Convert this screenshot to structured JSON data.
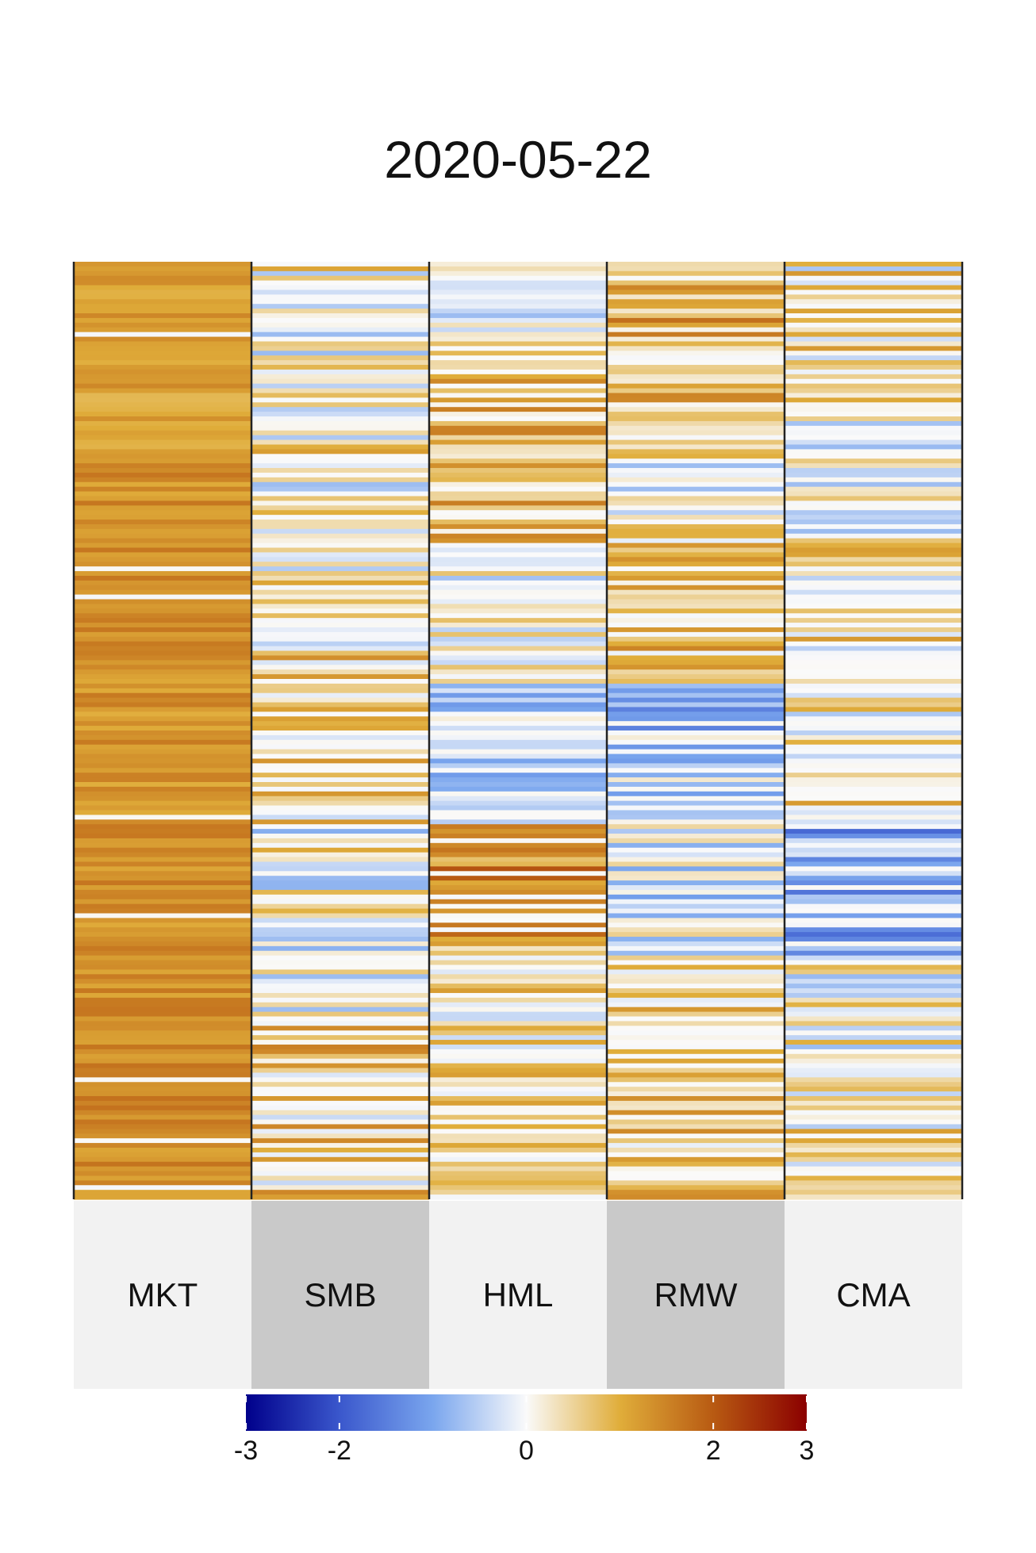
{
  "chart_data": {
    "type": "heatmap",
    "title": "2020-05-22",
    "columns": [
      "MKT",
      "SMB",
      "HML",
      "RMW",
      "CMA"
    ],
    "rows": 200,
    "value_range": [
      -3,
      3
    ],
    "colorbar": {
      "ticks": [
        -3,
        -2,
        0,
        2,
        3
      ],
      "tick_labels": [
        "-3",
        "-2",
        "0",
        "2",
        "3"
      ],
      "stops": [
        {
          "v": -3,
          "color": "#00008b"
        },
        {
          "v": -2,
          "color": "#3a57cc"
        },
        {
          "v": -1,
          "color": "#7aa6ee"
        },
        {
          "v": 0,
          "color": "#fafafa"
        },
        {
          "v": 1,
          "color": "#e0ad3a"
        },
        {
          "v": 2,
          "color": "#b85a12"
        },
        {
          "v": 3,
          "color": "#8b0000"
        }
      ]
    },
    "column_profiles": [
      {
        "name": "MKT",
        "segments": [
          [
            0,
            40,
            1.15
          ],
          [
            40,
            80,
            1.35
          ],
          [
            80,
            120,
            1.3
          ],
          [
            120,
            160,
            1.35
          ],
          [
            160,
            200,
            1.4
          ]
        ],
        "noise": 0.2,
        "white_rate": 0.02
      },
      {
        "name": "SMB",
        "segments": [
          [
            0,
            40,
            0.2
          ],
          [
            40,
            80,
            0.3
          ],
          [
            80,
            120,
            0.4
          ],
          [
            120,
            160,
            0.1
          ],
          [
            160,
            200,
            0.6
          ]
        ],
        "noise": 0.65,
        "white_rate": 0.25
      },
      {
        "name": "HML",
        "segments": [
          [
            0,
            15,
            0.05
          ],
          [
            15,
            60,
            0.8
          ],
          [
            60,
            90,
            0.0
          ],
          [
            90,
            120,
            -0.5
          ],
          [
            120,
            145,
            1.4
          ],
          [
            145,
            170,
            0.4
          ],
          [
            170,
            200,
            0.6
          ]
        ],
        "noise": 0.5,
        "white_rate": 0.15
      },
      {
        "name": "RMW",
        "segments": [
          [
            0,
            30,
            0.9
          ],
          [
            30,
            60,
            0.1
          ],
          [
            60,
            90,
            0.7
          ],
          [
            90,
            120,
            -0.6
          ],
          [
            120,
            150,
            -0.3
          ],
          [
            150,
            200,
            0.7
          ]
        ],
        "noise": 0.55,
        "white_rate": 0.2
      },
      {
        "name": "CMA",
        "segments": [
          [
            0,
            30,
            0.3
          ],
          [
            30,
            60,
            -0.2
          ],
          [
            60,
            90,
            0.4
          ],
          [
            90,
            120,
            0.3
          ],
          [
            120,
            150,
            -0.9
          ],
          [
            150,
            170,
            0.1
          ],
          [
            170,
            200,
            0.4
          ]
        ],
        "noise": 0.6,
        "white_rate": 0.3
      }
    ]
  }
}
